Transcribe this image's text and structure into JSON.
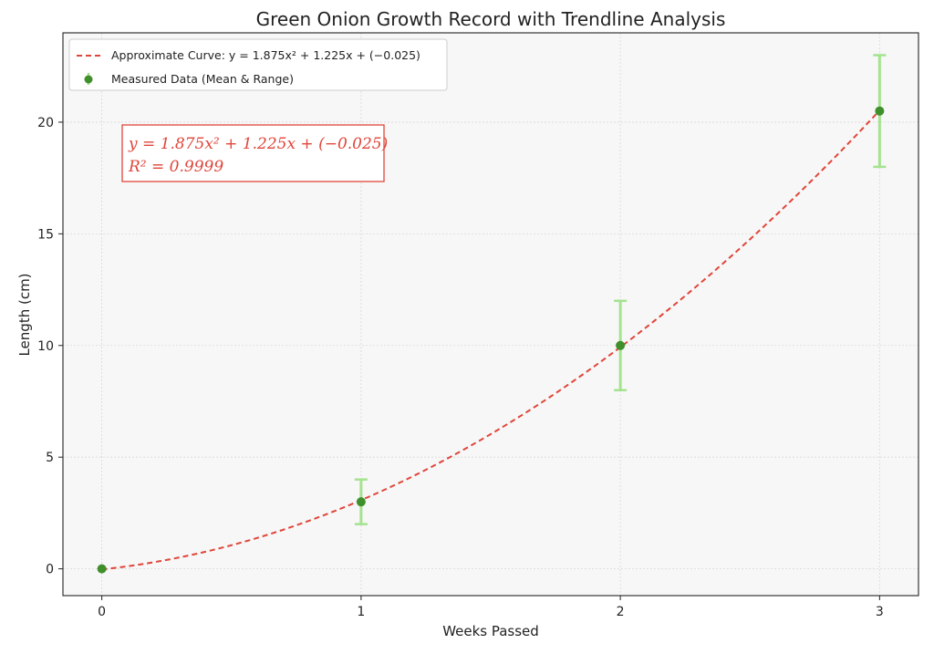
{
  "chart_data": {
    "type": "scatter",
    "title": "Green Onion Growth Record with Trendline Analysis",
    "xlabel": "Weeks Passed",
    "ylabel": "Length (cm)",
    "xlim": [
      -0.15,
      3.15
    ],
    "ylim": [
      -1.2,
      24.0
    ],
    "x_ticks": [
      0,
      1,
      2,
      3
    ],
    "y_ticks": [
      0,
      5,
      10,
      15,
      20
    ],
    "grid": true,
    "legend_position": "top-left",
    "legend": {
      "curve": "Approximate Curve: y = 1.875x² + 1.225x + (−0.025)",
      "points": "Measured Data (Mean & Range)"
    },
    "series": [
      {
        "name": "Measured Data (Mean & Range)",
        "x": [
          0,
          1,
          2,
          3
        ],
        "y": [
          0,
          3,
          10,
          20.5
        ],
        "y_low": [
          0,
          2,
          8,
          18
        ],
        "y_high": [
          0,
          4,
          12,
          23
        ]
      }
    ],
    "fit": {
      "name": "Approximate Curve",
      "coefficients": [
        1.875,
        1.225,
        -0.025
      ],
      "x_range": [
        0,
        3
      ]
    },
    "annotation": {
      "equation": "y = 1.875x² + 1.225x + (−0.025)",
      "r_squared": "R² = 0.9999"
    },
    "colors": {
      "curve": "#e0453a",
      "point": "#3f8f2b",
      "errorbar": "#a4e38f",
      "plot_bg": "#f7f7f7",
      "grid": "#d8d8d8"
    }
  }
}
